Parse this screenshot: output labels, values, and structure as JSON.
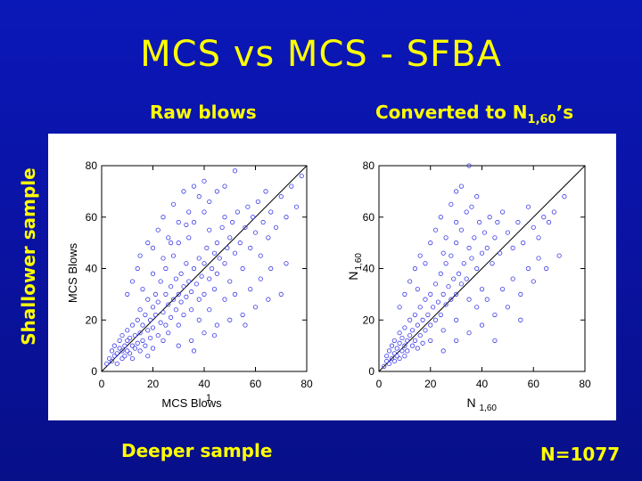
{
  "slide": {
    "title": "MCS vs MCS - SFBA",
    "left_heading": "Raw blows",
    "right_heading_main": "Converted to N",
    "right_heading_sub": "1,60",
    "right_heading_suffix": "’s",
    "row_label": "Shallower sample",
    "footer_left": "Deeper sample",
    "footer_right": "N=1077"
  },
  "colors": {
    "background": "#0a14a8",
    "text": "#ffff00",
    "marker": "#3b3be8",
    "panel": "#ffffff"
  },
  "chart_data": [
    {
      "type": "scatter",
      "xlabel": "MCS Blows",
      "ylabel": "MCS Blows",
      "xlim": [
        0,
        80
      ],
      "ylim": [
        0,
        80
      ],
      "xticks": [
        0,
        20,
        40,
        60,
        80
      ],
      "yticks": [
        0,
        20,
        40,
        60,
        80
      ],
      "stray_label": "1",
      "reference_line": [
        [
          0,
          0
        ],
        [
          80,
          80
        ]
      ],
      "grid": false,
      "marker": "open-circle",
      "points": [
        [
          2,
          3
        ],
        [
          3,
          5
        ],
        [
          4,
          4
        ],
        [
          4,
          8
        ],
        [
          5,
          6
        ],
        [
          5,
          10
        ],
        [
          6,
          3
        ],
        [
          6,
          7
        ],
        [
          7,
          9
        ],
        [
          7,
          12
        ],
        [
          8,
          5
        ],
        [
          8,
          8
        ],
        [
          8,
          14
        ],
        [
          9,
          10
        ],
        [
          9,
          6
        ],
        [
          10,
          12
        ],
        [
          10,
          8
        ],
        [
          10,
          16
        ],
        [
          11,
          7
        ],
        [
          11,
          13
        ],
        [
          12,
          10
        ],
        [
          12,
          18
        ],
        [
          12,
          5
        ],
        [
          13,
          14
        ],
        [
          13,
          9
        ],
        [
          14,
          20
        ],
        [
          14,
          11
        ],
        [
          15,
          15
        ],
        [
          15,
          8
        ],
        [
          15,
          24
        ],
        [
          16,
          12
        ],
        [
          16,
          18
        ],
        [
          17,
          22
        ],
        [
          17,
          10
        ],
        [
          18,
          16
        ],
        [
          18,
          28
        ],
        [
          18,
          6
        ],
        [
          19,
          20
        ],
        [
          19,
          13
        ],
        [
          20,
          25
        ],
        [
          20,
          17
        ],
        [
          20,
          9
        ],
        [
          21,
          22
        ],
        [
          21,
          30
        ],
        [
          22,
          14
        ],
        [
          22,
          27
        ],
        [
          23,
          19
        ],
        [
          23,
          35
        ],
        [
          24,
          23
        ],
        [
          24,
          12
        ],
        [
          25,
          30
        ],
        [
          25,
          18
        ],
        [
          25,
          40
        ],
        [
          26,
          26
        ],
        [
          26,
          15
        ],
        [
          27,
          33
        ],
        [
          27,
          21
        ],
        [
          28,
          28
        ],
        [
          28,
          45
        ],
        [
          29,
          24
        ],
        [
          29,
          36
        ],
        [
          30,
          30
        ],
        [
          30,
          18
        ],
        [
          30,
          50
        ],
        [
          31,
          27
        ],
        [
          31,
          38
        ],
        [
          32,
          33
        ],
        [
          32,
          22
        ],
        [
          33,
          42
        ],
        [
          33,
          29
        ],
        [
          34,
          35
        ],
        [
          34,
          52
        ],
        [
          35,
          31
        ],
        [
          35,
          24
        ],
        [
          36,
          40
        ],
        [
          36,
          58
        ],
        [
          37,
          34
        ],
        [
          38,
          44
        ],
        [
          38,
          28
        ],
        [
          39,
          37
        ],
        [
          40,
          42
        ],
        [
          40,
          30
        ],
        [
          40,
          62
        ],
        [
          41,
          48
        ],
        [
          42,
          36
        ],
        [
          42,
          55
        ],
        [
          43,
          40
        ],
        [
          44,
          46
        ],
        [
          44,
          32
        ],
        [
          45,
          50
        ],
        [
          45,
          38
        ],
        [
          46,
          44
        ],
        [
          47,
          56
        ],
        [
          48,
          42
        ],
        [
          48,
          60
        ],
        [
          49,
          48
        ],
        [
          50,
          52
        ],
        [
          50,
          35
        ],
        [
          51,
          58
        ],
        [
          52,
          46
        ],
        [
          53,
          62
        ],
        [
          54,
          50
        ],
        [
          55,
          40
        ],
        [
          56,
          56
        ],
        [
          57,
          64
        ],
        [
          58,
          48
        ],
        [
          59,
          60
        ],
        [
          60,
          54
        ],
        [
          61,
          66
        ],
        [
          62,
          45
        ],
        [
          63,
          58
        ],
        [
          64,
          70
        ],
        [
          65,
          52
        ],
        [
          66,
          62
        ],
        [
          68,
          56
        ],
        [
          70,
          68
        ],
        [
          72,
          60
        ],
        [
          74,
          72
        ],
        [
          76,
          64
        ],
        [
          78,
          76
        ],
        [
          10,
          30
        ],
        [
          12,
          35
        ],
        [
          14,
          40
        ],
        [
          15,
          45
        ],
        [
          18,
          50
        ],
        [
          20,
          48
        ],
        [
          22,
          55
        ],
        [
          24,
          60
        ],
        [
          26,
          52
        ],
        [
          28,
          65
        ],
        [
          30,
          58
        ],
        [
          32,
          70
        ],
        [
          34,
          62
        ],
        [
          36,
          72
        ],
        [
          38,
          68
        ],
        [
          40,
          74
        ],
        [
          42,
          66
        ],
        [
          45,
          70
        ],
        [
          48,
          72
        ],
        [
          52,
          78
        ],
        [
          20,
          38
        ],
        [
          16,
          32
        ],
        [
          24,
          44
        ],
        [
          27,
          50
        ],
        [
          33,
          57
        ],
        [
          30,
          10
        ],
        [
          35,
          12
        ],
        [
          40,
          15
        ],
        [
          45,
          18
        ],
        [
          50,
          20
        ],
        [
          55,
          22
        ],
        [
          60,
          25
        ],
        [
          65,
          28
        ],
        [
          70,
          30
        ],
        [
          38,
          20
        ],
        [
          42,
          24
        ],
        [
          48,
          28
        ],
        [
          52,
          30
        ],
        [
          58,
          32
        ],
        [
          62,
          36
        ],
        [
          66,
          40
        ],
        [
          72,
          42
        ],
        [
          44,
          14
        ],
        [
          56,
          18
        ],
        [
          36,
          8
        ]
      ]
    },
    {
      "type": "scatter",
      "xlabel": "N",
      "xlabel_sub": "1,60",
      "ylabel": "N",
      "ylabel_sub": "1,60",
      "xlim": [
        0,
        80
      ],
      "ylim": [
        0,
        80
      ],
      "xticks": [
        0,
        20,
        40,
        60,
        80
      ],
      "yticks": [
        0,
        20,
        40,
        60,
        80
      ],
      "reference_line": [
        [
          0,
          0
        ],
        [
          80,
          80
        ]
      ],
      "grid": false,
      "marker": "open-circle",
      "points": [
        [
          2,
          2
        ],
        [
          3,
          4
        ],
        [
          3,
          6
        ],
        [
          4,
          3
        ],
        [
          4,
          8
        ],
        [
          5,
          5
        ],
        [
          5,
          10
        ],
        [
          6,
          4
        ],
        [
          6,
          7
        ],
        [
          6,
          12
        ],
        [
          7,
          6
        ],
        [
          7,
          9
        ],
        [
          8,
          5
        ],
        [
          8,
          11
        ],
        [
          8,
          15
        ],
        [
          9,
          8
        ],
        [
          9,
          13
        ],
        [
          10,
          10
        ],
        [
          10,
          6
        ],
        [
          10,
          17
        ],
        [
          11,
          12
        ],
        [
          11,
          8
        ],
        [
          12,
          14
        ],
        [
          12,
          20
        ],
        [
          13,
          10
        ],
        [
          13,
          16
        ],
        [
          14,
          12
        ],
        [
          14,
          22
        ],
        [
          15,
          18
        ],
        [
          15,
          9
        ],
        [
          16,
          14
        ],
        [
          16,
          25
        ],
        [
          17,
          20
        ],
        [
          17,
          11
        ],
        [
          18,
          16
        ],
        [
          18,
          28
        ],
        [
          19,
          22
        ],
        [
          20,
          18
        ],
        [
          20,
          30
        ],
        [
          20,
          12
        ],
        [
          21,
          25
        ],
        [
          22,
          20
        ],
        [
          22,
          34
        ],
        [
          23,
          27
        ],
        [
          24,
          22
        ],
        [
          24,
          38
        ],
        [
          25,
          30
        ],
        [
          25,
          16
        ],
        [
          26,
          26
        ],
        [
          26,
          42
        ],
        [
          27,
          33
        ],
        [
          28,
          28
        ],
        [
          28,
          45
        ],
        [
          29,
          36
        ],
        [
          30,
          30
        ],
        [
          30,
          20
        ],
        [
          30,
          50
        ],
        [
          31,
          38
        ],
        [
          32,
          34
        ],
        [
          32,
          55
        ],
        [
          33,
          42
        ],
        [
          34,
          36
        ],
        [
          35,
          48
        ],
        [
          35,
          28
        ],
        [
          36,
          44
        ],
        [
          37,
          52
        ],
        [
          38,
          40
        ],
        [
          39,
          58
        ],
        [
          40,
          46
        ],
        [
          40,
          32
        ],
        [
          41,
          54
        ],
        [
          42,
          48
        ],
        [
          43,
          60
        ],
        [
          44,
          42
        ],
        [
          45,
          52
        ],
        [
          46,
          58
        ],
        [
          47,
          46
        ],
        [
          48,
          62
        ],
        [
          50,
          54
        ],
        [
          52,
          48
        ],
        [
          54,
          58
        ],
        [
          56,
          50
        ],
        [
          58,
          64
        ],
        [
          60,
          56
        ],
        [
          62,
          52
        ],
        [
          64,
          60
        ],
        [
          66,
          58
        ],
        [
          68,
          62
        ],
        [
          72,
          68
        ],
        [
          8,
          25
        ],
        [
          10,
          30
        ],
        [
          12,
          35
        ],
        [
          14,
          40
        ],
        [
          16,
          45
        ],
        [
          18,
          42
        ],
        [
          20,
          50
        ],
        [
          22,
          55
        ],
        [
          24,
          60
        ],
        [
          26,
          52
        ],
        [
          28,
          65
        ],
        [
          30,
          70
        ],
        [
          32,
          72
        ],
        [
          34,
          62
        ],
        [
          35,
          80
        ],
        [
          38,
          68
        ],
        [
          15,
          32
        ],
        [
          25,
          46
        ],
        [
          30,
          58
        ],
        [
          36,
          64
        ],
        [
          25,
          8
        ],
        [
          30,
          12
        ],
        [
          35,
          15
        ],
        [
          40,
          18
        ],
        [
          45,
          22
        ],
        [
          50,
          25
        ],
        [
          55,
          30
        ],
        [
          60,
          35
        ],
        [
          65,
          40
        ],
        [
          70,
          45
        ],
        [
          38,
          25
        ],
        [
          42,
          28
        ],
        [
          48,
          32
        ],
        [
          52,
          36
        ],
        [
          58,
          40
        ],
        [
          62,
          44
        ],
        [
          45,
          12
        ],
        [
          55,
          20
        ]
      ]
    }
  ]
}
